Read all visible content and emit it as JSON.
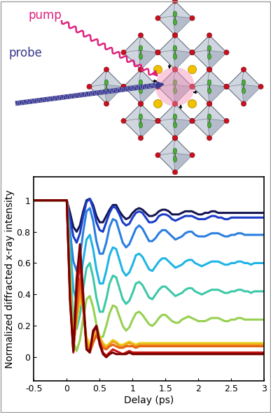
{
  "diagram": {
    "pump_label": "pump",
    "probe_label": "probe"
  },
  "chart_data": {
    "type": "line",
    "x_label": "Delay (ps)",
    "y_label": "Normalized diffracted x-ray intensity",
    "xlim": [
      -0.5,
      3
    ],
    "ylim": [
      -0.15,
      1.15
    ],
    "xticks": [
      -0.5,
      0,
      0.5,
      1,
      1.5,
      2,
      2.5,
      3
    ],
    "yticks": [
      0,
      0.2,
      0.4,
      0.6,
      0.8,
      1
    ],
    "x": [
      -0.5,
      -0.3,
      -0.1,
      0,
      0.05,
      0.1,
      0.15,
      0.2,
      0.25,
      0.3,
      0.35,
      0.4,
      0.45,
      0.5,
      0.55,
      0.6,
      0.65,
      0.7,
      0.75,
      0.8,
      0.85,
      0.9,
      0.95,
      1,
      1.05,
      1.1,
      1.15,
      1.2,
      1.25,
      1.3,
      1.35,
      1.4,
      1.45,
      1.5,
      1.55,
      1.6,
      1.65,
      1.7,
      1.75,
      1.8,
      1.85,
      1.9,
      1.95,
      2,
      2.05,
      2.1,
      2.15,
      2.2,
      2.25,
      2.3,
      2.35,
      2.4,
      2.45,
      2.5,
      2.55,
      2.6,
      2.65,
      2.7,
      2.75,
      2.8,
      2.85,
      2.9,
      2.95,
      3
    ],
    "series": [
      {
        "color": "#141450",
        "values": [
          1,
          1,
          1,
          1,
          0.92,
          0.83,
          0.8,
          0.84,
          0.93,
          1.0,
          1.01,
          0.97,
          0.9,
          0.86,
          0.86,
          0.9,
          0.94,
          0.97,
          0.97,
          0.93,
          0.9,
          0.88,
          0.89,
          0.92,
          0.94,
          0.95,
          0.94,
          0.92,
          0.9,
          0.9,
          0.91,
          0.93,
          0.94,
          0.94,
          0.93,
          0.91,
          0.91,
          0.91,
          0.92,
          0.93,
          0.93,
          0.93,
          0.92,
          0.91,
          0.91,
          0.92,
          0.92,
          0.93,
          0.93,
          0.92,
          0.92,
          0.92,
          0.92,
          0.92,
          0.92,
          0.92,
          0.92,
          0.92,
          0.92,
          0.92,
          0.92,
          0.92,
          0.92,
          0.92
        ]
      },
      {
        "color": "#1a3cc8",
        "values": [
          1,
          1,
          1,
          1,
          0.88,
          0.77,
          0.73,
          0.79,
          0.9,
          0.99,
          1.01,
          0.95,
          0.86,
          0.81,
          0.8,
          0.86,
          0.92,
          0.96,
          0.95,
          0.91,
          0.86,
          0.84,
          0.85,
          0.89,
          0.92,
          0.93,
          0.92,
          0.89,
          0.86,
          0.86,
          0.87,
          0.9,
          0.91,
          0.91,
          0.9,
          0.88,
          0.87,
          0.88,
          0.89,
          0.9,
          0.9,
          0.9,
          0.89,
          0.88,
          0.88,
          0.88,
          0.89,
          0.9,
          0.9,
          0.89,
          0.89,
          0.88,
          0.88,
          0.89,
          0.89,
          0.89,
          0.89,
          0.89,
          0.89,
          0.89,
          0.89,
          0.89,
          0.89,
          0.89
        ]
      },
      {
        "color": "#2a7ee0",
        "values": [
          1,
          1,
          1,
          1,
          0.8,
          0.61,
          0.55,
          0.64,
          0.8,
          0.93,
          0.95,
          0.87,
          0.74,
          0.66,
          0.66,
          0.73,
          0.83,
          0.88,
          0.87,
          0.8,
          0.73,
          0.7,
          0.72,
          0.77,
          0.82,
          0.84,
          0.82,
          0.78,
          0.74,
          0.74,
          0.76,
          0.79,
          0.81,
          0.81,
          0.79,
          0.77,
          0.75,
          0.76,
          0.77,
          0.79,
          0.8,
          0.8,
          0.78,
          0.77,
          0.77,
          0.77,
          0.78,
          0.79,
          0.79,
          0.79,
          0.78,
          0.77,
          0.77,
          0.78,
          0.78,
          0.79,
          0.79,
          0.78,
          0.78,
          0.78,
          0.78,
          0.78,
          0.78,
          0.78
        ]
      },
      {
        "color": "#1fb4e6",
        "values": [
          1,
          1,
          1,
          1,
          0.72,
          0.43,
          0.36,
          0.45,
          0.62,
          0.75,
          0.78,
          0.69,
          0.56,
          0.47,
          0.47,
          0.55,
          0.65,
          0.7,
          0.69,
          0.62,
          0.55,
          0.52,
          0.54,
          0.59,
          0.65,
          0.66,
          0.64,
          0.6,
          0.56,
          0.55,
          0.58,
          0.61,
          0.63,
          0.63,
          0.61,
          0.59,
          0.57,
          0.58,
          0.59,
          0.61,
          0.62,
          0.62,
          0.6,
          0.59,
          0.58,
          0.59,
          0.6,
          0.61,
          0.61,
          0.61,
          0.6,
          0.59,
          0.59,
          0.6,
          0.6,
          0.61,
          0.61,
          0.6,
          0.6,
          0.59,
          0.6,
          0.6,
          0.6,
          0.6
        ]
      },
      {
        "color": "#3cc8a8",
        "values": [
          1,
          1,
          1,
          1,
          0.6,
          0.25,
          0.18,
          0.27,
          0.44,
          0.57,
          0.6,
          0.51,
          0.38,
          0.29,
          0.29,
          0.37,
          0.47,
          0.52,
          0.51,
          0.44,
          0.37,
          0.34,
          0.36,
          0.41,
          0.47,
          0.48,
          0.46,
          0.42,
          0.38,
          0.37,
          0.4,
          0.43,
          0.45,
          0.45,
          0.43,
          0.41,
          0.39,
          0.4,
          0.41,
          0.43,
          0.44,
          0.44,
          0.42,
          0.41,
          0.4,
          0.41,
          0.42,
          0.43,
          0.43,
          0.43,
          0.42,
          0.41,
          0.41,
          0.42,
          0.42,
          0.43,
          0.43,
          0.42,
          0.42,
          0.41,
          0.42,
          0.42,
          0.42,
          0.42
        ]
      },
      {
        "color": "#96d050",
        "values": [
          1,
          1,
          1,
          1,
          0.55,
          0.1,
          0.04,
          0.11,
          0.25,
          0.37,
          0.39,
          0.32,
          0.21,
          0.13,
          0.13,
          0.2,
          0.28,
          0.33,
          0.32,
          0.26,
          0.2,
          0.17,
          0.19,
          0.24,
          0.28,
          0.29,
          0.27,
          0.24,
          0.21,
          0.2,
          0.22,
          0.25,
          0.27,
          0.27,
          0.25,
          0.23,
          0.22,
          0.22,
          0.24,
          0.25,
          0.26,
          0.25,
          0.24,
          0.23,
          0.23,
          0.23,
          0.24,
          0.25,
          0.25,
          0.25,
          0.24,
          0.23,
          0.23,
          0.24,
          0.24,
          0.25,
          0.25,
          0.24,
          0.24,
          0.24,
          0.24,
          0.24,
          0.24,
          0.24
        ]
      },
      {
        "color": "#e6d21e",
        "values": [
          1,
          1,
          1,
          1,
          0.45,
          0.08,
          0.22,
          0.38,
          0.3,
          0.13,
          0.08,
          0.12,
          0.16,
          0.13,
          0.09,
          0.07,
          0.09,
          0.11,
          0.1,
          0.08,
          0.08,
          0.09,
          0.1,
          0.09,
          0.08,
          0.09,
          0.09,
          0.09,
          0.09,
          0.09,
          0.09,
          0.09,
          0.09,
          0.09,
          0.09,
          0.09,
          0.09,
          0.09,
          0.09,
          0.09,
          0.09,
          0.09,
          0.09,
          0.09,
          0.09,
          0.09,
          0.09,
          0.09,
          0.09,
          0.09,
          0.09,
          0.09,
          0.09,
          0.09,
          0.09,
          0.09,
          0.09,
          0.09,
          0.09,
          0.09,
          0.09,
          0.09,
          0.09,
          0.09
        ]
      },
      {
        "color": "#f0a01e",
        "values": [
          1,
          1,
          1,
          1,
          0.42,
          0.06,
          0.25,
          0.42,
          0.3,
          0.1,
          0.05,
          0.1,
          0.15,
          0.12,
          0.08,
          0.06,
          0.08,
          0.1,
          0.09,
          0.07,
          0.07,
          0.08,
          0.09,
          0.08,
          0.07,
          0.08,
          0.08,
          0.08,
          0.08,
          0.08,
          0.08,
          0.08,
          0.08,
          0.08,
          0.08,
          0.08,
          0.08,
          0.08,
          0.08,
          0.08,
          0.08,
          0.08,
          0.08,
          0.08,
          0.08,
          0.08,
          0.08,
          0.08,
          0.08,
          0.08,
          0.08,
          0.08,
          0.08,
          0.08,
          0.08,
          0.08,
          0.08,
          0.08,
          0.08,
          0.08,
          0.08,
          0.08,
          0.08,
          0.08
        ]
      },
      {
        "color": "#e66414",
        "values": [
          1,
          1,
          1,
          1,
          0.4,
          0.04,
          0.3,
          0.5,
          0.32,
          0.08,
          0.03,
          0.09,
          0.14,
          0.1,
          0.06,
          0.05,
          0.07,
          0.08,
          0.07,
          0.06,
          0.06,
          0.07,
          0.07,
          0.07,
          0.06,
          0.07,
          0.07,
          0.07,
          0.07,
          0.07,
          0.07,
          0.07,
          0.07,
          0.07,
          0.07,
          0.07,
          0.07,
          0.07,
          0.07,
          0.07,
          0.07,
          0.07,
          0.07,
          0.07,
          0.07,
          0.07,
          0.07,
          0.07,
          0.07,
          0.07,
          0.07,
          0.07,
          0.07,
          0.07,
          0.07,
          0.07,
          0.07,
          0.07,
          0.07,
          0.07,
          0.07,
          0.07,
          0.07,
          0.07
        ]
      },
      {
        "color": "#c81414",
        "values": [
          1,
          1,
          1,
          1,
          0.38,
          0.03,
          0.4,
          0.62,
          0.35,
          0.05,
          0.04,
          0.15,
          0.2,
          0.1,
          0.03,
          0.01,
          0.03,
          0.05,
          0.04,
          0.03,
          0.02,
          0.03,
          0.04,
          0.03,
          0.03,
          0.03,
          0.03,
          0.03,
          0.03,
          0.03,
          0.03,
          0.03,
          0.03,
          0.03,
          0.03,
          0.03,
          0.03,
          0.03,
          0.03,
          0.03,
          0.03,
          0.03,
          0.03,
          0.03,
          0.03,
          0.03,
          0.03,
          0.03,
          0.03,
          0.03,
          0.03,
          0.03,
          0.03,
          0.03,
          0.03,
          0.03,
          0.03,
          0.03,
          0.03,
          0.03,
          0.03,
          0.03,
          0.03,
          0.03
        ]
      },
      {
        "color": "#780000",
        "values": [
          1,
          1,
          1,
          1,
          0.35,
          0.04,
          0.5,
          0.72,
          0.4,
          0.05,
          0.03,
          0.17,
          0.2,
          0.08,
          0.02,
          0.0,
          0.02,
          0.03,
          0.02,
          0.02,
          0.02,
          0.02,
          0.03,
          0.02,
          0.02,
          0.02,
          0.02,
          0.02,
          0.02,
          0.02,
          0.02,
          0.02,
          0.02,
          0.02,
          0.02,
          0.02,
          0.02,
          0.02,
          0.02,
          0.02,
          0.02,
          0.02,
          0.02,
          0.02,
          0.02,
          0.02,
          0.02,
          0.02,
          0.02,
          0.02,
          0.02,
          0.02,
          0.02,
          0.02,
          0.02,
          0.02,
          0.02,
          0.02,
          0.02,
          0.02,
          0.02,
          0.02,
          0.02,
          0.02
        ]
      }
    ]
  }
}
